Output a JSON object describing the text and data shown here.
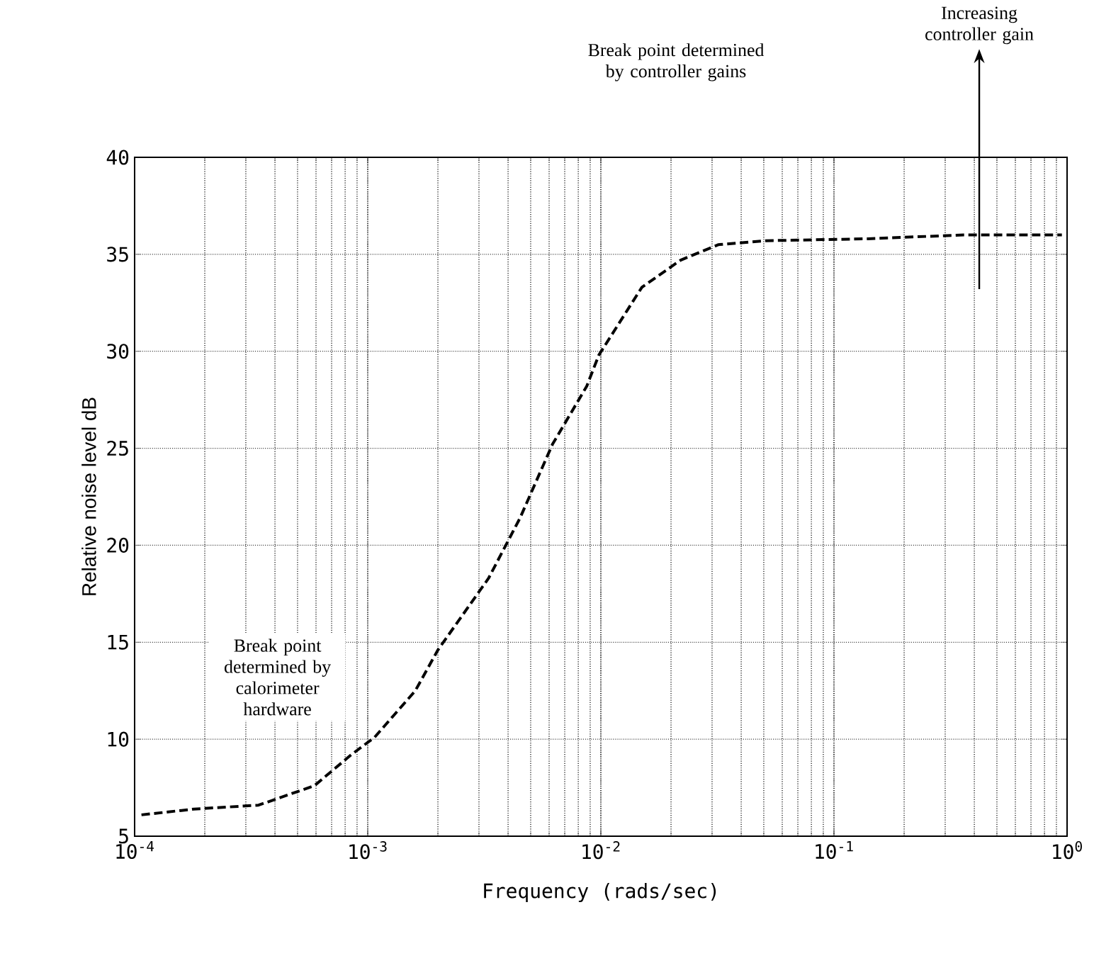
{
  "chart_data": {
    "type": "line",
    "xlabel": "Frequency (rads/sec)",
    "ylabel": "Relative noise level dB",
    "x": [
      0.000107,
      0.00018,
      0.00034,
      0.00059,
      0.00085,
      0.00107,
      0.0016,
      0.002,
      0.0033,
      0.0045,
      0.0062,
      0.0087,
      0.0098,
      0.015,
      0.022,
      0.032,
      0.051,
      0.14,
      0.36,
      0.95
    ],
    "series": [
      {
        "color": "#000000",
        "values": [
          6.1,
          6.4,
          6.6,
          7.6,
          9.2,
          10.1,
          12.5,
          14.6,
          18.3,
          21.4,
          25.2,
          28.2,
          29.8,
          33.3,
          34.7,
          35.5,
          35.7,
          35.8,
          36.0,
          36.0
        ]
      }
    ],
    "log": "x",
    "xlim": [
      0.0001,
      1
    ],
    "ylim": [
      5,
      40
    ],
    "xticks": [
      {
        "value": 0.0001,
        "label": "10$^{-4}$"
      },
      {
        "value": 0.001,
        "label": "10$^{-3}$"
      },
      {
        "value": 0.01,
        "label": "10$^{-2}$"
      },
      {
        "value": 0.1,
        "label": "10$^{-1}$"
      },
      {
        "value": 1,
        "label": "10$^{0}$"
      }
    ],
    "yticks": [
      5,
      10,
      15,
      20,
      25,
      30,
      35,
      40
    ],
    "grid": true,
    "line_style": "dashed",
    "marker": "none",
    "annotations": [
      "Break point determined by calorimeter hardware",
      "Break point determined by controller gains",
      "Increasing controller gain"
    ]
  }
}
